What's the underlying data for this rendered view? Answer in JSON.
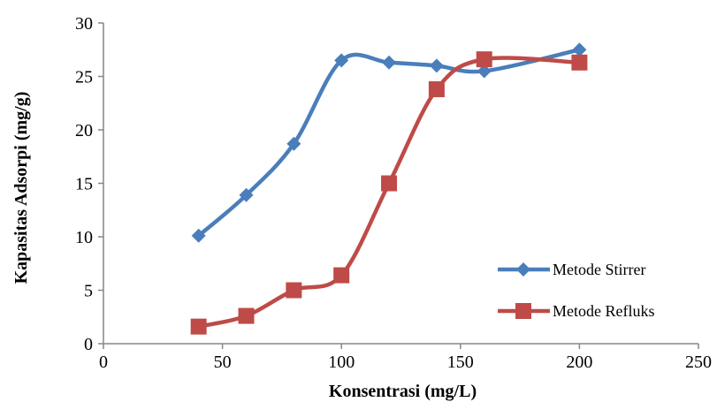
{
  "chart_data": {
    "type": "line",
    "xlabel": "Konsentrasi (mg/L)",
    "ylabel": "Kapasitas Adsorpi (mg/g)",
    "xlim": [
      0,
      250
    ],
    "ylim": [
      0,
      30
    ],
    "xticks": [
      0,
      50,
      100,
      150,
      200,
      250
    ],
    "yticks": [
      0,
      5,
      10,
      15,
      20,
      25,
      30
    ],
    "grid": false,
    "legend_position": "right",
    "smooth": true,
    "series": [
      {
        "name": "Metode Stirrer",
        "color": "#4a7ebb",
        "marker": "diamond",
        "x": [
          40,
          60,
          80,
          100,
          120,
          140,
          160,
          200
        ],
        "y": [
          10.1,
          13.9,
          18.7,
          26.5,
          26.3,
          26.0,
          25.5,
          27.5
        ]
      },
      {
        "name": "Metode Refluks",
        "color": "#be4b48",
        "marker": "square",
        "x": [
          40,
          60,
          80,
          100,
          120,
          140,
          160,
          200
        ],
        "y": [
          1.6,
          2.6,
          5.0,
          6.4,
          15.0,
          23.8,
          26.6,
          26.3
        ]
      }
    ]
  }
}
